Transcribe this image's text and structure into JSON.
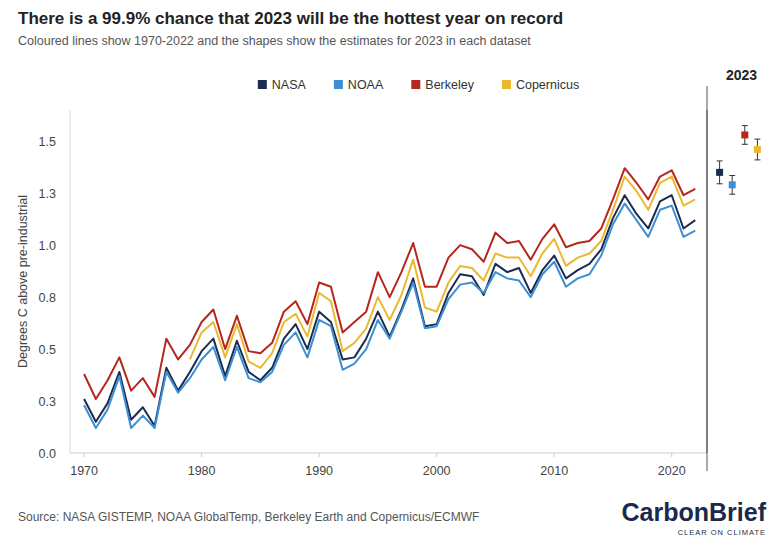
{
  "chart_data": [
    {
      "type": "line",
      "title": "There is a 99.9% chance that 2023 will be the hottest year on record",
      "subtitle": "Coloured lines show 1970-2022 and the shapes show the estimates for 2023 in each dataset",
      "y_label": "Degrees C above pre-industrial",
      "source": "Source: NASA GISTEMP, NOAA GlobalTemp, Berkeley Earth and Copernicus/ECMWF",
      "logo": "CarbonBrief",
      "logo_tagline": "CLEAR ON CLIMATE",
      "x": [
        1970,
        1971,
        1972,
        1973,
        1974,
        1975,
        1976,
        1977,
        1978,
        1979,
        1980,
        1981,
        1982,
        1983,
        1984,
        1985,
        1986,
        1987,
        1988,
        1989,
        1990,
        1991,
        1992,
        1993,
        1994,
        1995,
        1996,
        1997,
        1998,
        1999,
        2000,
        2001,
        2002,
        2003,
        2004,
        2005,
        2006,
        2007,
        2008,
        2009,
        2010,
        2011,
        2012,
        2013,
        2014,
        2015,
        2016,
        2017,
        2018,
        2019,
        2020,
        2021,
        2022
      ],
      "xlim": [
        1968.8,
        2023
      ],
      "xticks": [
        1970,
        1980,
        1990,
        2000,
        2010,
        2020
      ],
      "ylim": [
        0,
        1.65
      ],
      "yticks": [
        {
          "value": 0,
          "label": "0.0"
        },
        {
          "value": 0.25,
          "label": "0.3"
        },
        0.5,
        {
          "value": 0.75,
          "label": "0.8"
        },
        {
          "value": 1,
          "label": "1.0"
        },
        {
          "value": 1.25,
          "label": "1.3"
        },
        1.5
      ],
      "grid": false,
      "legend": "top",
      "series": [
        {
          "name": "NASA",
          "color": "#1c2b50",
          "values": [
            0.26,
            0.15,
            0.24,
            0.39,
            0.16,
            0.22,
            0.13,
            0.41,
            0.3,
            0.39,
            0.49,
            0.55,
            0.37,
            0.54,
            0.39,
            0.35,
            0.41,
            0.55,
            0.62,
            0.5,
            0.68,
            0.63,
            0.45,
            0.46,
            0.55,
            0.68,
            0.56,
            0.69,
            0.84,
            0.61,
            0.62,
            0.77,
            0.86,
            0.85,
            0.76,
            0.91,
            0.87,
            0.89,
            0.77,
            0.88,
            0.95,
            0.84,
            0.88,
            0.91,
            0.98,
            1.13,
            1.24,
            1.15,
            1.08,
            1.21,
            1.24,
            1.08,
            1.12
          ]
        },
        {
          "name": "NOAA",
          "color": "#3b8fd4",
          "values": [
            0.23,
            0.12,
            0.21,
            0.37,
            0.12,
            0.18,
            0.12,
            0.39,
            0.29,
            0.36,
            0.45,
            0.51,
            0.35,
            0.51,
            0.36,
            0.34,
            0.39,
            0.52,
            0.58,
            0.46,
            0.64,
            0.61,
            0.4,
            0.43,
            0.5,
            0.64,
            0.55,
            0.68,
            0.82,
            0.6,
            0.61,
            0.74,
            0.81,
            0.82,
            0.77,
            0.87,
            0.84,
            0.83,
            0.75,
            0.86,
            0.92,
            0.8,
            0.84,
            0.86,
            0.95,
            1.1,
            1.2,
            1.12,
            1.04,
            1.17,
            1.19,
            1.04,
            1.07
          ]
        },
        {
          "name": "Berkeley",
          "color": "#b5261e",
          "values": [
            0.38,
            0.26,
            0.35,
            0.46,
            0.3,
            0.36,
            0.27,
            0.55,
            0.45,
            0.52,
            0.63,
            0.69,
            0.5,
            0.66,
            0.49,
            0.48,
            0.53,
            0.68,
            0.73,
            0.62,
            0.82,
            0.8,
            0.58,
            0.63,
            0.68,
            0.87,
            0.75,
            0.87,
            1.01,
            0.8,
            0.8,
            0.94,
            1.0,
            0.98,
            0.92,
            1.06,
            1.01,
            1.02,
            0.93,
            1.03,
            1.1,
            0.99,
            1.01,
            1.02,
            1.08,
            1.22,
            1.37,
            1.3,
            1.22,
            1.33,
            1.36,
            1.24,
            1.27
          ]
        },
        {
          "name": "Copernicus",
          "color": "#eab931",
          "values": [
            null,
            null,
            null,
            null,
            null,
            null,
            null,
            null,
            null,
            0.45,
            0.58,
            0.63,
            0.46,
            0.62,
            0.44,
            0.41,
            0.48,
            0.63,
            0.67,
            0.56,
            0.77,
            0.73,
            0.49,
            0.53,
            0.6,
            0.75,
            0.64,
            0.76,
            0.93,
            0.7,
            0.68,
            0.82,
            0.9,
            0.89,
            0.83,
            0.96,
            0.94,
            0.94,
            0.85,
            0.96,
            1.03,
            0.9,
            0.94,
            0.96,
            1.02,
            1.17,
            1.33,
            1.26,
            1.17,
            1.3,
            1.33,
            1.19,
            1.22
          ]
        }
      ]
    },
    {
      "type": "scatter",
      "title": "2023",
      "categories": [
        null,
        null,
        null,
        null
      ],
      "values": [
        1.35,
        1.29,
        1.53,
        1.46
      ],
      "errors": [
        0.055,
        0.045,
        0.045,
        0.05
      ],
      "colors": [
        "#1c2b50",
        "#3b8fd4",
        "#b5261e",
        "#eab931"
      ],
      "marker": "square",
      "ylim": [
        0,
        1.65
      ],
      "tick_labels": false
    }
  ]
}
